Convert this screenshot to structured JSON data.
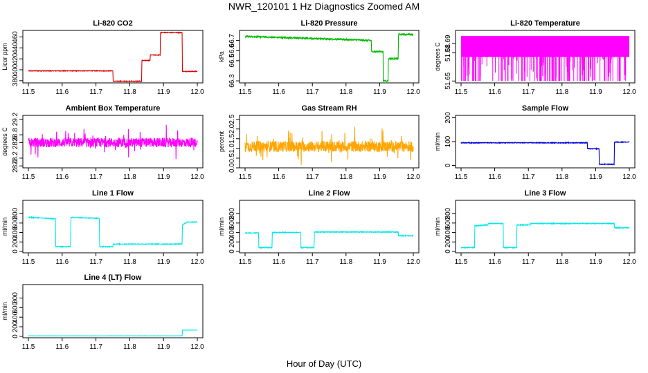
{
  "figure": {
    "title": "NWR_120101  1 Hz Diagnostics Zoomed AM",
    "xlabel": "Hour of Day (UTC)"
  },
  "chart_data": [
    {
      "id": "co2",
      "type": "line",
      "title": "Li-820 CO2",
      "ylabel": "Licor ppm",
      "color": "#dd0000",
      "xlim": [
        11.5,
        12.0
      ],
      "ylim": [
        376,
        472
      ],
      "xticks": [
        "11.5",
        "11.6",
        "11.7",
        "11.8",
        "11.9",
        "12.0"
      ],
      "yticks": [
        {
          "v": 380,
          "label": "380"
        },
        {
          "v": 400,
          "label": "400"
        },
        {
          "v": 420,
          "label": "420"
        },
        {
          "v": 440,
          "label": "440"
        },
        {
          "v": 460,
          "label": "460"
        }
      ],
      "noise": 0.6,
      "spikes": 0,
      "series": [
        {
          "x": [
            11.5,
            11.75,
            11.751,
            11.835,
            11.836,
            11.86,
            11.861,
            11.89,
            11.891,
            11.955,
            11.956,
            12.0
          ],
          "y": [
            398,
            398,
            379,
            379,
            417,
            417,
            427,
            427,
            468,
            468,
            397,
            397
          ]
        }
      ]
    },
    {
      "id": "pressure",
      "type": "line",
      "title": "Li-820 Pressure",
      "ylabel": "kPa",
      "color": "#00bb00",
      "xlim": [
        11.5,
        12.0
      ],
      "ylim": [
        66.28,
        66.8
      ],
      "xticks": [
        "11.5",
        "11.6",
        "11.7",
        "11.8",
        "11.9",
        "12.0"
      ],
      "yticks": [
        {
          "v": 66.3,
          "label": "66.3"
        },
        {
          "v": 66.5,
          "label": "66.5"
        },
        {
          "v": 66.6,
          "label": "66.6"
        },
        {
          "v": 66.7,
          "label": "66.7"
        }
      ],
      "noise": 0.008,
      "spikes": 0,
      "series": [
        {
          "x": [
            11.5,
            11.6,
            11.7,
            11.8,
            11.875,
            11.876,
            11.91,
            11.911,
            11.925,
            11.926,
            11.955,
            11.956,
            12.0
          ],
          "y": [
            66.74,
            66.73,
            66.72,
            66.71,
            66.7,
            66.59,
            66.59,
            66.3,
            66.3,
            66.52,
            66.52,
            66.76,
            66.76
          ]
        }
      ]
    },
    {
      "id": "licor_temp",
      "type": "line",
      "title": "Li-820 Temperature",
      "ylabel": "degrees C",
      "color": "#ff00ff",
      "xlim": [
        11.5,
        12.0
      ],
      "ylim": [
        51.648,
        51.704
      ],
      "xticks": [
        "11.5",
        "11.6",
        "11.7",
        "11.8",
        "11.9",
        "12.0"
      ],
      "yticks": [
        {
          "v": 51.65,
          "label": "51.65"
        },
        {
          "v": 51.68,
          "label": "51.68"
        },
        {
          "v": 51.69,
          "label": "51.69"
        }
      ],
      "noise": 0.0,
      "spikes": 0,
      "series": [
        {
          "x": [
            11.5,
            12.0
          ],
          "y": [
            51.676,
            51.676
          ]
        }
      ]
    },
    {
      "id": "box_temp",
      "type": "line",
      "title": "Ambient Box Temperature",
      "ylabel": "degrees C",
      "color": "#ff00ff",
      "xlim": [
        11.5,
        12.0
      ],
      "ylim": [
        27.95,
        29.3
      ],
      "xticks": [
        "11.5",
        "11.6",
        "11.7",
        "11.8",
        "11.9",
        "12.0"
      ],
      "yticks": [
        {
          "v": 28.0,
          "label": "28.0"
        },
        {
          "v": 28.2,
          "label": "28.2"
        },
        {
          "v": 28.6,
          "label": "28.6"
        },
        {
          "v": 28.8,
          "label": "28.8"
        },
        {
          "v": 29.2,
          "label": "29.2"
        }
      ],
      "noise": 0.12,
      "spikes": 0.35,
      "series": [
        {
          "x": [
            11.5,
            12.0
          ],
          "y": [
            28.6,
            28.6
          ]
        }
      ]
    },
    {
      "id": "rh",
      "type": "line",
      "title": "Gas Stream RH",
      "ylabel": "percent",
      "color": "#ffa500",
      "xlim": [
        11.5,
        12.0
      ],
      "ylim": [
        0.0,
        2.7
      ],
      "xticks": [
        "11.5",
        "11.6",
        "11.7",
        "11.8",
        "11.9",
        "12.0"
      ],
      "yticks": [
        {
          "v": 0.0,
          "label": "0.0"
        },
        {
          "v": 0.5,
          "label": "0.5"
        },
        {
          "v": 1.0,
          "label": "1.0"
        },
        {
          "v": 1.5,
          "label": "1.5"
        },
        {
          "v": 2.0,
          "label": "2.0"
        },
        {
          "v": 2.5,
          "label": "2.5"
        }
      ],
      "noise": 0.28,
      "spikes": 0.8,
      "series": [
        {
          "x": [
            11.5,
            12.0
          ],
          "y": [
            1.1,
            1.1
          ]
        }
      ]
    },
    {
      "id": "sample_flow",
      "type": "line",
      "title": "Sample Flow",
      "ylabel": "ml/min",
      "color": "#0000dd",
      "xlim": [
        11.5,
        12.0
      ],
      "ylim": [
        -10,
        210
      ],
      "xticks": [
        "11.5",
        "11.6",
        "11.7",
        "11.8",
        "11.9",
        "12.0"
      ],
      "yticks": [
        {
          "v": 0,
          "label": "0"
        },
        {
          "v": 100,
          "label": "100"
        },
        {
          "v": 200,
          "label": "200"
        }
      ],
      "noise": 1.5,
      "spikes": 0,
      "series": [
        {
          "x": [
            11.5,
            11.875,
            11.876,
            11.91,
            11.911,
            11.955,
            11.956,
            12.0
          ],
          "y": [
            95,
            95,
            70,
            70,
            5,
            5,
            98,
            98
          ]
        }
      ]
    },
    {
      "id": "line1",
      "type": "line",
      "title": "Line 1 Flow",
      "ylabel": "ml/min",
      "color": "#00e8e8",
      "xlim": [
        11.5,
        12.0
      ],
      "ylim": [
        -30,
        1080
      ],
      "xticks": [
        "11.5",
        "11.6",
        "11.7",
        "11.8",
        "11.9",
        "12.0"
      ],
      "yticks": [
        {
          "v": 0,
          "label": "0"
        },
        {
          "v": 200,
          "label": "200"
        },
        {
          "v": 400,
          "label": "400"
        },
        {
          "v": 600,
          "label": "600"
        },
        {
          "v": 800,
          "label": "800"
        }
      ],
      "noise": 8,
      "spikes": 0,
      "series": [
        {
          "x": [
            11.5,
            11.58,
            11.581,
            11.625,
            11.626,
            11.71,
            11.711,
            11.75,
            11.751,
            11.955,
            11.956,
            11.97,
            12.0
          ],
          "y": [
            720,
            690,
            100,
            100,
            720,
            700,
            100,
            100,
            155,
            155,
            560,
            620,
            620
          ]
        }
      ]
    },
    {
      "id": "line2",
      "type": "line",
      "title": "Line 2 Flow",
      "ylabel": "ml/min",
      "color": "#00e8e8",
      "xlim": [
        11.5,
        12.0
      ],
      "ylim": [
        -30,
        1080
      ],
      "xticks": [
        "11.5",
        "11.6",
        "11.7",
        "11.8",
        "11.9",
        "12.0"
      ],
      "yticks": [
        {
          "v": 0,
          "label": "0"
        },
        {
          "v": 200,
          "label": "200"
        },
        {
          "v": 400,
          "label": "400"
        },
        {
          "v": 600,
          "label": "600"
        },
        {
          "v": 800,
          "label": "800"
        }
      ],
      "noise": 8,
      "spikes": 0,
      "series": [
        {
          "x": [
            11.5,
            11.54,
            11.541,
            11.58,
            11.581,
            11.665,
            11.666,
            11.705,
            11.706,
            11.955,
            11.956,
            12.0
          ],
          "y": [
            390,
            390,
            80,
            80,
            400,
            400,
            80,
            80,
            410,
            410,
            330,
            330
          ]
        }
      ]
    },
    {
      "id": "line3",
      "type": "line",
      "title": "Line 3 Flow",
      "ylabel": "ml/min",
      "color": "#00e8e8",
      "xlim": [
        11.5,
        12.0
      ],
      "ylim": [
        -30,
        1080
      ],
      "xticks": [
        "11.5",
        "11.6",
        "11.7",
        "11.8",
        "11.9",
        "12.0"
      ],
      "yticks": [
        {
          "v": 0,
          "label": "0"
        },
        {
          "v": 200,
          "label": "200"
        },
        {
          "v": 400,
          "label": "400"
        },
        {
          "v": 600,
          "label": "600"
        },
        {
          "v": 800,
          "label": "800"
        }
      ],
      "noise": 8,
      "spikes": 0,
      "series": [
        {
          "x": [
            11.5,
            11.54,
            11.541,
            11.58,
            11.581,
            11.625,
            11.626,
            11.665,
            11.666,
            11.705,
            11.706,
            11.955,
            11.956,
            12.0
          ],
          "y": [
            80,
            80,
            540,
            560,
            590,
            590,
            80,
            80,
            560,
            560,
            590,
            590,
            500,
            500
          ]
        }
      ]
    },
    {
      "id": "line4",
      "type": "line",
      "title": "Line 4 (LT) Flow",
      "ylabel": "ml/min",
      "color": "#00e8e8",
      "xlim": [
        11.5,
        12.0
      ],
      "ylim": [
        -30,
        1080
      ],
      "xticks": [
        "11.5",
        "11.6",
        "11.7",
        "11.8",
        "11.9",
        "12.0"
      ],
      "yticks": [
        {
          "v": 0,
          "label": "0"
        },
        {
          "v": 200,
          "label": "200"
        },
        {
          "v": 400,
          "label": "400"
        },
        {
          "v": 600,
          "label": "600"
        },
        {
          "v": 800,
          "label": "800"
        }
      ],
      "noise": 2,
      "spikes": 0,
      "series": [
        {
          "x": [
            11.5,
            11.955,
            11.956,
            12.0
          ],
          "y": [
            10,
            10,
            130,
            130
          ]
        }
      ]
    }
  ]
}
